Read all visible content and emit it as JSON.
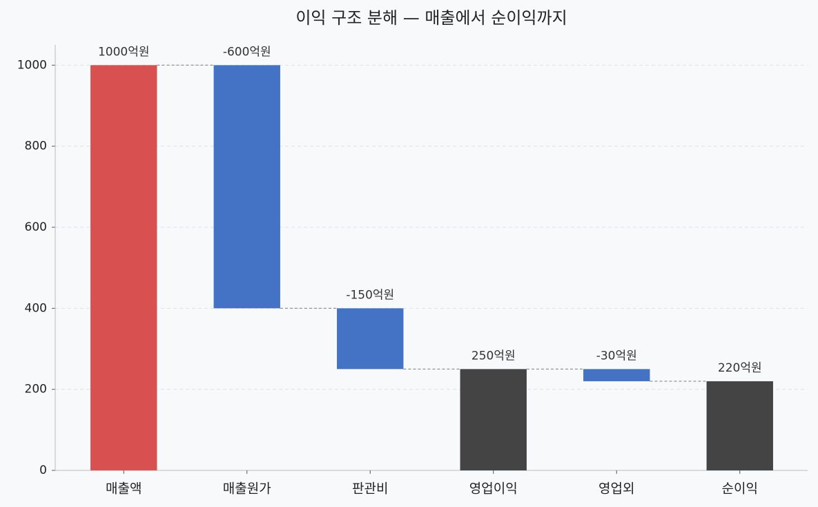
{
  "chart_data": {
    "type": "waterfall",
    "title": "이익 구조 분해 — 매출에서 순이익까지",
    "categories": [
      "매출액",
      "매출원가",
      "판관비",
      "영업이익",
      "영업외",
      "순이익"
    ],
    "values": [
      1000,
      -600,
      -150,
      250,
      -30,
      220
    ],
    "value_labels": [
      "1000억원",
      "-600억원",
      "-150억원",
      "250억원",
      "-30억원",
      "220억원"
    ],
    "measures": [
      "absolute",
      "relative",
      "relative",
      "total",
      "relative",
      "total"
    ],
    "colors": [
      "#d95050",
      "#4472c4",
      "#4472c4",
      "#444444",
      "#4472c4",
      "#444444"
    ],
    "ylim": [
      0,
      1050
    ],
    "yticks": [
      0,
      200,
      400,
      600,
      800,
      1000
    ],
    "grid": true
  }
}
